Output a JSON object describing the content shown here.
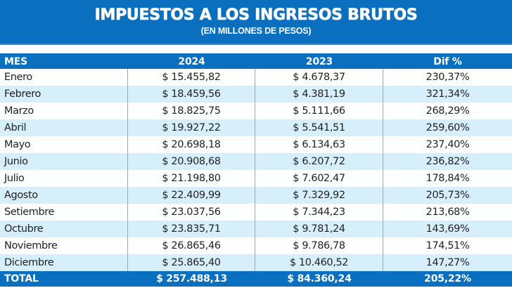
{
  "header": {
    "title": "IMPUESTOS A LOS INGRESOS BRUTOS",
    "subtitle": "(EN MILLONES DE PESOS)"
  },
  "colors": {
    "brand_blue": "#0a6fbf",
    "row_alt": "#d7eefb",
    "row_base": "#ffffff"
  },
  "table": {
    "columns": [
      "MES",
      "2024",
      "2023",
      "Dif %"
    ],
    "rows": [
      {
        "mes": "Enero",
        "y2024": "$ 15.455,82",
        "y2023": "$ 4.678,37",
        "dif": "230,37%"
      },
      {
        "mes": "Febrero",
        "y2024": "$ 18.459,56",
        "y2023": "$ 4.381,19",
        "dif": "321,34%"
      },
      {
        "mes": "Marzo",
        "y2024": "$ 18.825,75",
        "y2023": "$ 5.111,66",
        "dif": "268,29%"
      },
      {
        "mes": "Abril",
        "y2024": "$ 19.927,22",
        "y2023": "$ 5.541,51",
        "dif": "259,60%"
      },
      {
        "mes": "Mayo",
        "y2024": "$ 20.698,18",
        "y2023": "$ 6.134,63",
        "dif": "237,40%"
      },
      {
        "mes": "Junio",
        "y2024": "$ 20.908,68",
        "y2023": "$ 6.207,72",
        "dif": "236,82%"
      },
      {
        "mes": "Julio",
        "y2024": "$ 21.198,80",
        "y2023": "$ 7.602,47",
        "dif": "178,84%"
      },
      {
        "mes": "Agosto",
        "y2024": "$ 22.409,99",
        "y2023": "$ 7.329,92",
        "dif": "205,73%"
      },
      {
        "mes": "Setiembre",
        "y2024": "$ 23.037,56",
        "y2023": "$ 7.344,23",
        "dif": "213,68%"
      },
      {
        "mes": "Octubre",
        "y2024": "$ 23.835,71",
        "y2023": "$ 9.781,24",
        "dif": "143,69%"
      },
      {
        "mes": "Noviembre",
        "y2024": "$ 26.865,46",
        "y2023": "$ 9.786,78",
        "dif": "174,51%"
      },
      {
        "mes": "Diciembre",
        "y2024": "$ 25.865,40",
        "y2023": "$ 10.460,52",
        "dif": "147,27%"
      }
    ],
    "total": {
      "mes": "TOTAL",
      "y2024": "$ 257.488,13",
      "y2023": "$ 84.360,24",
      "dif": "205,22%"
    }
  }
}
